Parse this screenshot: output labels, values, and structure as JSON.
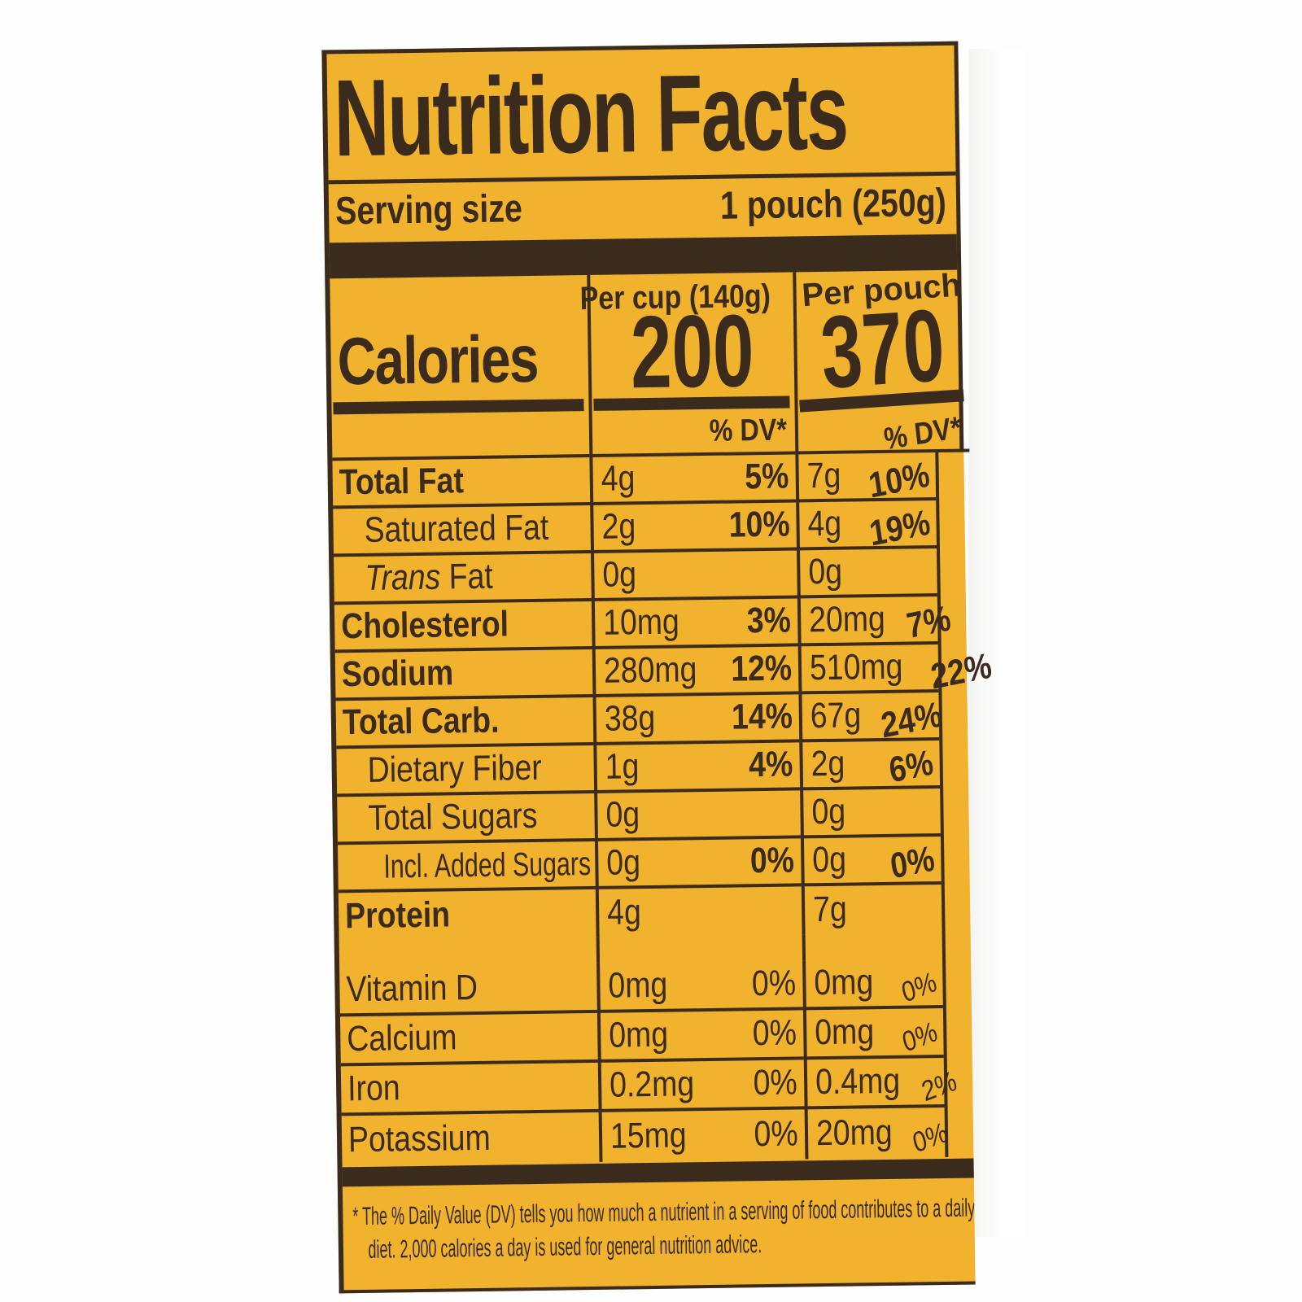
{
  "colors": {
    "label_bg": "#f1b22d",
    "ink": "#3a2b1d",
    "page_bg": "#ffffff"
  },
  "header": {
    "title": "Nutrition Facts",
    "serving_label": "Serving size",
    "serving_value": "1 pouch (250g)"
  },
  "calories": {
    "name": "Calories",
    "per_cup_header": "Per cup (140g)",
    "per_cup_value": "200",
    "per_pouch_header": "Per pouch",
    "per_pouch_value": "370",
    "dv_header_cup": "% DV*",
    "dv_header_pouch": "% DV*"
  },
  "nutrients": [
    {
      "name": "Total Fat",
      "style": "main",
      "cup_amount": "4g",
      "cup_dv": "5%",
      "pouch_amount": "7g",
      "pouch_dv": "10%"
    },
    {
      "name": "Saturated Fat",
      "style": "sub",
      "cup_amount": "2g",
      "cup_dv": "10%",
      "pouch_amount": "4g",
      "pouch_dv": "19%"
    },
    {
      "name_italic": "Trans",
      "name": " Fat",
      "style": "sub",
      "cup_amount": "0g",
      "cup_dv": "",
      "pouch_amount": "0g",
      "pouch_dv": ""
    },
    {
      "name": "Cholesterol",
      "style": "main",
      "cup_amount": "10mg",
      "cup_dv": "3%",
      "pouch_amount": "20mg",
      "pouch_dv": "7%"
    },
    {
      "name": "Sodium",
      "style": "main",
      "cup_amount": "280mg",
      "cup_dv": "12%",
      "pouch_amount": "510mg",
      "pouch_dv": "22%"
    },
    {
      "name": "Total Carb.",
      "style": "main",
      "cup_amount": "38g",
      "cup_dv": "14%",
      "pouch_amount": "67g",
      "pouch_dv": "24%"
    },
    {
      "name": "Dietary Fiber",
      "style": "sub",
      "cup_amount": "1g",
      "cup_dv": "4%",
      "pouch_amount": "2g",
      "pouch_dv": "6%"
    },
    {
      "name": "Total Sugars",
      "style": "sub",
      "cup_amount": "0g",
      "cup_dv": "",
      "pouch_amount": "0g",
      "pouch_dv": ""
    },
    {
      "name": "Incl. Added Sugars",
      "style": "sub2",
      "cup_amount": "0g",
      "cup_dv": "0%",
      "pouch_amount": "0g",
      "pouch_dv": "0%"
    },
    {
      "name": "Protein",
      "style": "main",
      "cup_amount": "4g",
      "cup_dv": "",
      "pouch_amount": "7g",
      "pouch_dv": ""
    }
  ],
  "micronutrients": [
    {
      "name": "Vitamin D",
      "cup_amount": "0mg",
      "cup_dv": "0%",
      "pouch_amount": "0mg",
      "pouch_dv": "0%"
    },
    {
      "name": "Calcium",
      "cup_amount": "0mg",
      "cup_dv": "0%",
      "pouch_amount": "0mg",
      "pouch_dv": "0%"
    },
    {
      "name": "Iron",
      "cup_amount": "0.2mg",
      "cup_dv": "0%",
      "pouch_amount": "0.4mg",
      "pouch_dv": "2%"
    },
    {
      "name": "Potassium",
      "cup_amount": "15mg",
      "cup_dv": "0%",
      "pouch_amount": "20mg",
      "pouch_dv": "0%"
    }
  ],
  "footnote": "* The % Daily Value (DV) tells you how much a nutrient in a serving of food contributes to a daily diet. 2,000 calories a day is used for general nutrition advice."
}
